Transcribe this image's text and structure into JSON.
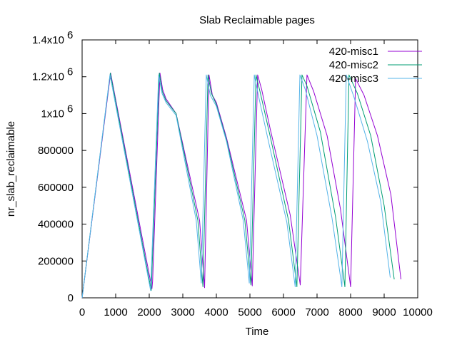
{
  "chart_data": {
    "type": "line",
    "title": "Slab Reclaimable pages",
    "xlabel": "Time",
    "ylabel": "nr_slab_reclaimable",
    "xlim": [
      0,
      10000
    ],
    "ylim": [
      0,
      1400000
    ],
    "x_ticks": [
      {
        "value": 0,
        "label": "0"
      },
      {
        "value": 1000,
        "label": "1000"
      },
      {
        "value": 2000,
        "label": "2000"
      },
      {
        "value": 3000,
        "label": "3000"
      },
      {
        "value": 4000,
        "label": "4000"
      },
      {
        "value": 5000,
        "label": "5000"
      },
      {
        "value": 6000,
        "label": "6000"
      },
      {
        "value": 7000,
        "label": "7000"
      },
      {
        "value": 8000,
        "label": "8000"
      },
      {
        "value": 9000,
        "label": "9000"
      },
      {
        "value": 10000,
        "label": "10000"
      }
    ],
    "y_ticks": [
      {
        "value": 0,
        "label": "0",
        "exp": ""
      },
      {
        "value": 200000,
        "label": "200000",
        "exp": ""
      },
      {
        "value": 400000,
        "label": "400000",
        "exp": ""
      },
      {
        "value": 600000,
        "label": "600000",
        "exp": ""
      },
      {
        "value": 800000,
        "label": "800000",
        "exp": ""
      },
      {
        "value": 1000000,
        "label": "1x10",
        "exp": "6"
      },
      {
        "value": 1200000,
        "label": "1.2x10",
        "exp": "6"
      },
      {
        "value": 1400000,
        "label": "1.4x10",
        "exp": "6"
      }
    ],
    "grid": false,
    "legend": "top-right",
    "series": [
      {
        "name": "420-misc1",
        "color": "#9400d3",
        "points": [
          [
            0,
            0
          ],
          [
            850,
            1220000
          ],
          [
            2080,
            50000
          ],
          [
            2100,
            90000
          ],
          [
            2320,
            1220000
          ],
          [
            2400,
            1130000
          ],
          [
            2500,
            1080000
          ],
          [
            2800,
            1000000
          ],
          [
            3500,
            420000
          ],
          [
            3650,
            55000
          ],
          [
            3780,
            1210000
          ],
          [
            3880,
            1100000
          ],
          [
            4000,
            1060000
          ],
          [
            4300,
            870000
          ],
          [
            4900,
            420000
          ],
          [
            5070,
            65000
          ],
          [
            5230,
            1210000
          ],
          [
            5350,
            1130000
          ],
          [
            5600,
            920000
          ],
          [
            6200,
            450000
          ],
          [
            6500,
            70000
          ],
          [
            6700,
            1210000
          ],
          [
            6900,
            1120000
          ],
          [
            7300,
            880000
          ],
          [
            7700,
            480000
          ],
          [
            8000,
            60000
          ],
          [
            8150,
            1190000
          ],
          [
            8400,
            1100000
          ],
          [
            8800,
            880000
          ],
          [
            9200,
            560000
          ],
          [
            9500,
            100000
          ]
        ]
      },
      {
        "name": "420-misc2",
        "color": "#009e73",
        "points": [
          [
            0,
            0
          ],
          [
            840,
            1220000
          ],
          [
            2060,
            40000
          ],
          [
            2300,
            1220000
          ],
          [
            2390,
            1120000
          ],
          [
            2500,
            1070000
          ],
          [
            2800,
            1000000
          ],
          [
            3450,
            420000
          ],
          [
            3600,
            60000
          ],
          [
            3750,
            1210000
          ],
          [
            3850,
            1110000
          ],
          [
            4000,
            1050000
          ],
          [
            4300,
            860000
          ],
          [
            4850,
            420000
          ],
          [
            5030,
            70000
          ],
          [
            5180,
            1210000
          ],
          [
            5300,
            1120000
          ],
          [
            5600,
            880000
          ],
          [
            6150,
            420000
          ],
          [
            6400,
            60000
          ],
          [
            6550,
            1210000
          ],
          [
            6700,
            1150000
          ],
          [
            7100,
            900000
          ],
          [
            7550,
            440000
          ],
          [
            7830,
            60000
          ],
          [
            7950,
            1210000
          ],
          [
            8200,
            1110000
          ],
          [
            8600,
            880000
          ],
          [
            9000,
            500000
          ],
          [
            9300,
            100000
          ]
        ]
      },
      {
        "name": "420-misc3",
        "color": "#56b4e9",
        "points": [
          [
            0,
            0
          ],
          [
            830,
            1210000
          ],
          [
            2040,
            40000
          ],
          [
            2280,
            1210000
          ],
          [
            2380,
            1110000
          ],
          [
            2500,
            1060000
          ],
          [
            2800,
            990000
          ],
          [
            3400,
            420000
          ],
          [
            3550,
            80000
          ],
          [
            3700,
            1210000
          ],
          [
            3820,
            1100000
          ],
          [
            4000,
            1040000
          ],
          [
            4300,
            850000
          ],
          [
            4800,
            420000
          ],
          [
            4980,
            80000
          ],
          [
            5130,
            1210000
          ],
          [
            5250,
            1100000
          ],
          [
            5550,
            850000
          ],
          [
            6100,
            410000
          ],
          [
            6350,
            60000
          ],
          [
            6490,
            1210000
          ],
          [
            6650,
            1130000
          ],
          [
            7000,
            880000
          ],
          [
            7450,
            430000
          ],
          [
            7740,
            60000
          ],
          [
            7870,
            1210000
          ],
          [
            8100,
            1090000
          ],
          [
            8500,
            850000
          ],
          [
            8900,
            520000
          ],
          [
            9180,
            110000
          ]
        ]
      }
    ]
  }
}
